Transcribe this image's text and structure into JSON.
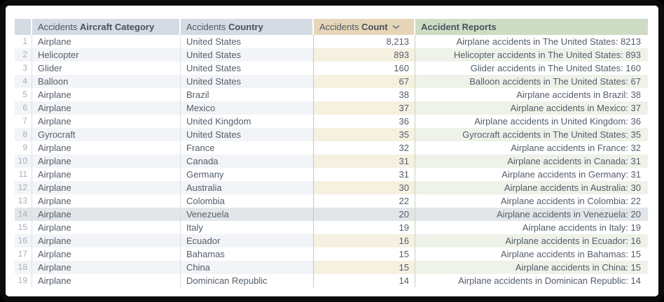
{
  "table": {
    "columns": [
      {
        "id": "rownum",
        "prefix": "",
        "bold": "",
        "sortable": false
      },
      {
        "id": "category",
        "prefix": "Accidents",
        "bold": "Aircraft Category",
        "sortable": true
      },
      {
        "id": "country",
        "prefix": "Accidents",
        "bold": "Country",
        "sortable": true
      },
      {
        "id": "count",
        "prefix": "Accidents",
        "bold": "Count",
        "sortable": true,
        "sort": "desc",
        "sort_icon": "chevron-down-icon"
      },
      {
        "id": "reports",
        "prefix": "",
        "bold": "Accident Reports",
        "sortable": true
      }
    ],
    "rows": [
      {
        "n": "1",
        "category": "Airplane",
        "country": "United States",
        "count": "8,213",
        "report": "Airplane accidents in The United States: 8213"
      },
      {
        "n": "2",
        "category": "Helicopter",
        "country": "United States",
        "count": "893",
        "report": "Helicopter accidents in The United States: 893"
      },
      {
        "n": "3",
        "category": "Glider",
        "country": "United States",
        "count": "160",
        "report": "Glider accidents in The United States: 160"
      },
      {
        "n": "4",
        "category": "Balloon",
        "country": "United States",
        "count": "67",
        "report": "Balloon accidents in The United States: 67"
      },
      {
        "n": "5",
        "category": "Airplane",
        "country": "Brazil",
        "count": "38",
        "report": "Airplane accidents in Brazil: 38"
      },
      {
        "n": "6",
        "category": "Airplane",
        "country": "Mexico",
        "count": "37",
        "report": "Airplane accidents in Mexico: 37"
      },
      {
        "n": "7",
        "category": "Airplane",
        "country": "United Kingdom",
        "count": "36",
        "report": "Airplane accidents in United Kingdom: 36"
      },
      {
        "n": "8",
        "category": "Gyrocraft",
        "country": "United States",
        "count": "35",
        "report": "Gyrocraft accidents in The United States: 35"
      },
      {
        "n": "9",
        "category": "Airplane",
        "country": "France",
        "count": "32",
        "report": "Airplane accidents in France: 32"
      },
      {
        "n": "10",
        "category": "Airplane",
        "country": "Canada",
        "count": "31",
        "report": "Airplane accidents in Canada: 31"
      },
      {
        "n": "11",
        "category": "Airplane",
        "country": "Germany",
        "count": "31",
        "report": "Airplane accidents in Germany: 31"
      },
      {
        "n": "12",
        "category": "Airplane",
        "country": "Australia",
        "count": "30",
        "report": "Airplane accidents in Australia: 30"
      },
      {
        "n": "13",
        "category": "Airplane",
        "country": "Colombia",
        "count": "22",
        "report": "Airplane accidents in Colombia: 22"
      },
      {
        "n": "14",
        "category": "Airplane",
        "country": "Venezuela",
        "count": "20",
        "report": "Airplane accidents in Venezuela: 20"
      },
      {
        "n": "15",
        "category": "Airplane",
        "country": "Italy",
        "count": "19",
        "report": "Airplane accidents in Italy: 19"
      },
      {
        "n": "16",
        "category": "Airplane",
        "country": "Ecuador",
        "count": "16",
        "report": "Airplane accidents in Ecuador: 16"
      },
      {
        "n": "17",
        "category": "Airplane",
        "country": "Bahamas",
        "count": "15",
        "report": "Airplane accidents in Bahamas: 15"
      },
      {
        "n": "18",
        "category": "Airplane",
        "country": "China",
        "count": "15",
        "report": "Airplane accidents in China: 15"
      },
      {
        "n": "19",
        "category": "Airplane",
        "country": "Dominican Republic",
        "count": "14",
        "report": "Airplane accidents in Dominican Republic: 14"
      }
    ],
    "highlighted_row": "14"
  },
  "colors": {
    "header_blue": "#d4dbe3",
    "header_tan": "#e6d5b8",
    "header_green": "#cfdcc5",
    "row_alt_blue": "#f2f4f7",
    "row_alt_tan": "#f6f0e1",
    "row_alt_green": "#eef2e8",
    "row_highlight": "#e3e6e9",
    "cell_text": "#535d68",
    "row_number_text": "#a7afbb",
    "divider_gray": "#dcdfe3",
    "divider_tan": "#d6c5a3",
    "divider_green": "#c8d5bc",
    "frame_black": "#0b0b0b"
  }
}
